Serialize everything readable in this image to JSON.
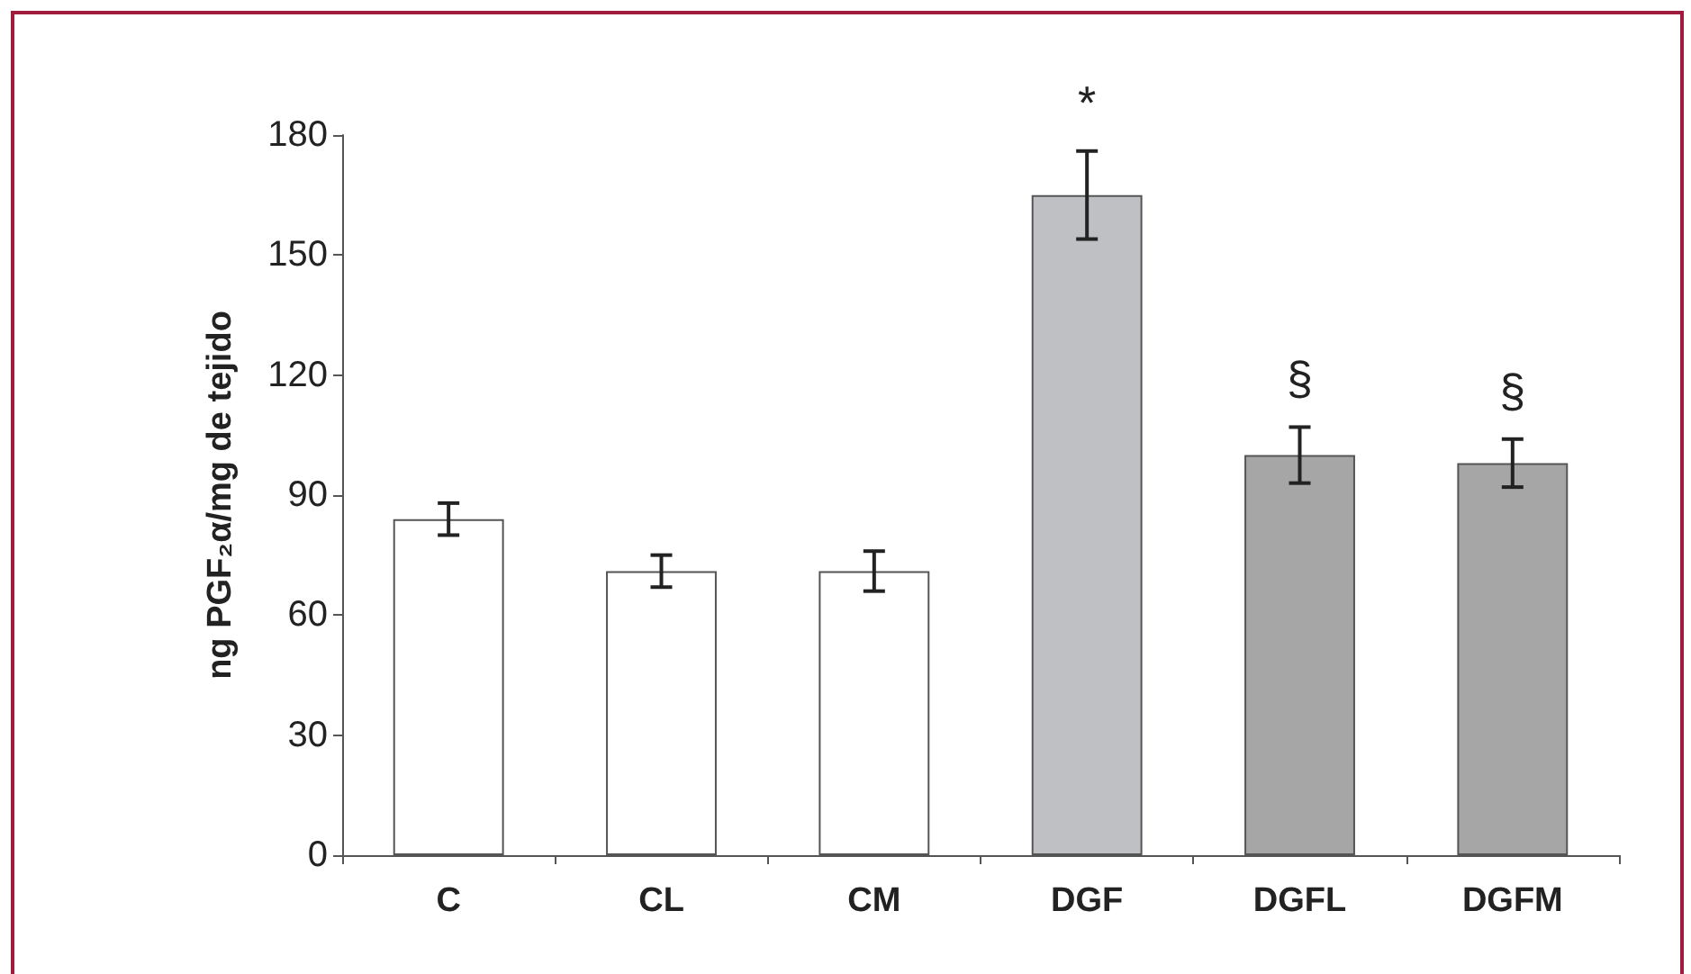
{
  "chart_data": {
    "type": "bar",
    "ylabel": "ng PGF₂α/mg de tejido",
    "categories": [
      "C",
      "CL",
      "CM",
      "DGF",
      "DGFL",
      "DGFM"
    ],
    "values": [
      84,
      71,
      71,
      165,
      100,
      98
    ],
    "errors": [
      4,
      4,
      5,
      11,
      7,
      6
    ],
    "colors": [
      "#ffffff",
      "#ffffff",
      "#ffffff",
      "#bfc0c4",
      "#a6a6a6",
      "#a6a6a6"
    ],
    "ylim": [
      0,
      180
    ],
    "yticks": [
      0,
      30,
      60,
      90,
      120,
      150,
      180
    ],
    "grid": false,
    "annotations": [
      {
        "text": "*",
        "x": "DGF",
        "y": 165
      },
      {
        "text": "§",
        "x": "DGFL",
        "y": 100
      },
      {
        "text": "§",
        "x": "DGFM",
        "y": 98
      }
    ]
  }
}
